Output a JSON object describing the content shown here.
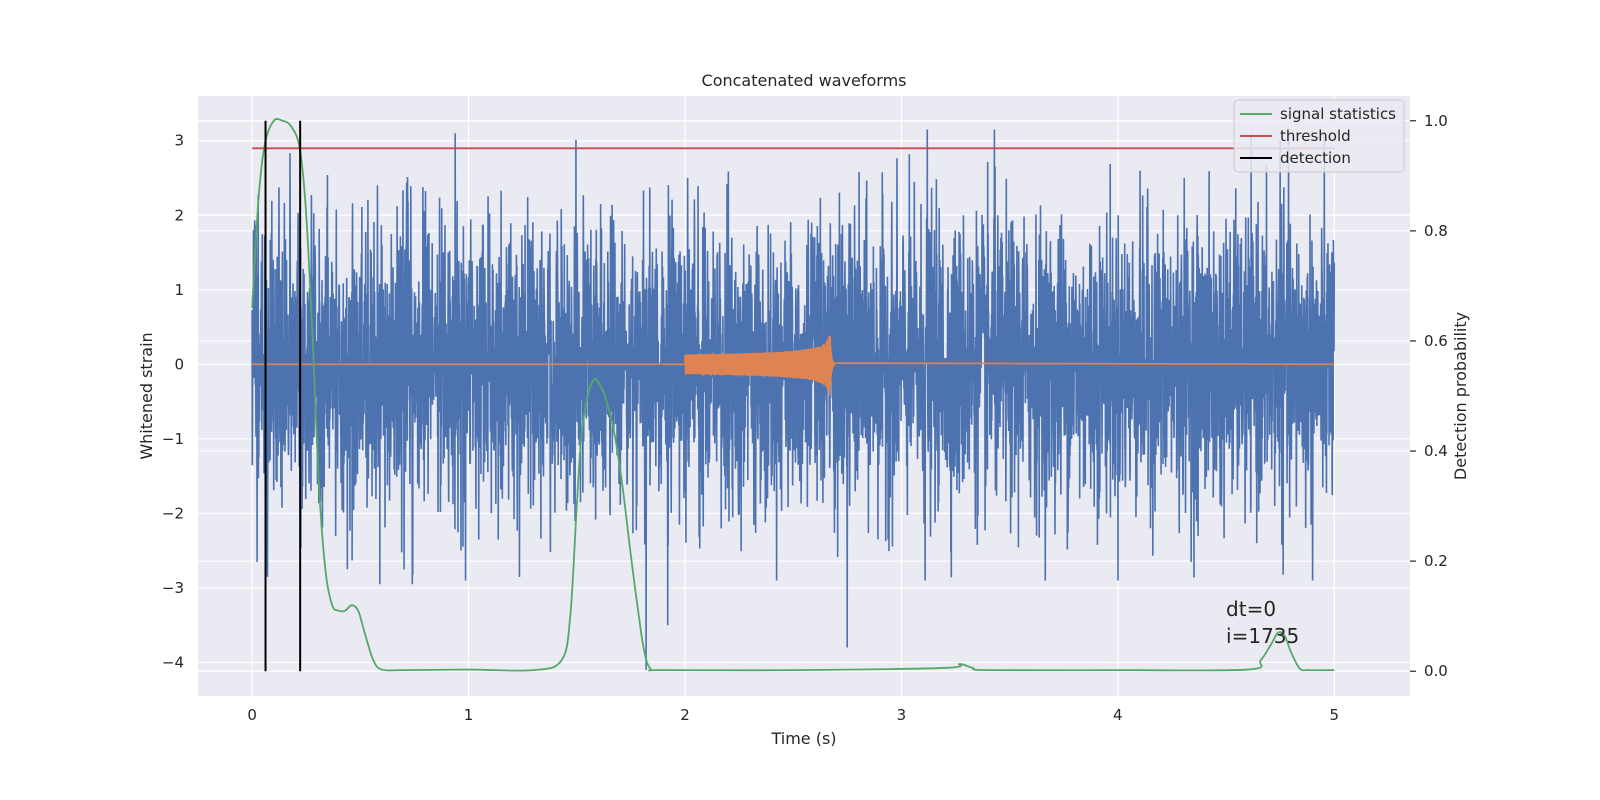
{
  "chart_data": {
    "type": "line",
    "title": "Concatenated waveforms",
    "xlabel": "Time (s)",
    "ylabel": "Whitened strain",
    "y2label": "Detection probability",
    "xlim": [
      -0.25,
      5.35
    ],
    "ylim": [
      -4.45,
      3.6
    ],
    "y2lim": [
      -0.045,
      1.045
    ],
    "xticks": [
      0,
      1,
      2,
      3,
      4,
      5
    ],
    "yticks": [
      -4,
      -3,
      -2,
      -1,
      0,
      1,
      2,
      3
    ],
    "y2ticks": [
      0.0,
      0.2,
      0.4,
      0.6,
      0.8,
      1.0
    ],
    "xtick_labels": [
      "0",
      "1",
      "2",
      "3",
      "4",
      "5"
    ],
    "ytick_labels": [
      "−4",
      "−3",
      "−2",
      "−1",
      "0",
      "1",
      "2",
      "3"
    ],
    "y2tick_labels": [
      "0.0",
      "0.2",
      "0.4",
      "0.6",
      "0.8",
      "1.0"
    ],
    "grid": true,
    "legend_position": "top-right",
    "colors": {
      "strain": "#4c72b0",
      "template": "#dd8452",
      "signal_statistics": "#55a868",
      "threshold": "#c44e52",
      "detection": "#000000",
      "background": "#eaeaf2",
      "grid": "#ffffff"
    },
    "series": [
      {
        "name": "signal statistics",
        "axis": "right",
        "x": [
          0,
          0.03,
          0.06,
          0.1,
          0.14,
          0.18,
          0.22,
          0.25,
          0.28,
          0.31,
          0.34,
          0.37,
          0.4,
          0.43,
          0.46,
          0.49,
          0.52,
          0.56,
          0.6,
          0.7,
          1.0,
          1.3,
          1.43,
          1.47,
          1.5,
          1.52,
          1.55,
          1.58,
          1.6,
          1.63,
          1.67,
          1.71,
          1.75,
          1.78,
          1.81,
          1.84,
          1.9,
          2.5,
          3.2,
          3.27,
          3.33,
          3.4,
          4.0,
          4.6,
          4.66,
          4.71,
          4.74,
          4.77,
          4.8,
          4.84,
          4.88,
          5.0
        ],
        "y": [
          0.66,
          0.86,
          0.96,
          1.0,
          1.0,
          0.99,
          0.95,
          0.83,
          0.6,
          0.33,
          0.18,
          0.12,
          0.11,
          0.11,
          0.12,
          0.11,
          0.07,
          0.02,
          0.003,
          0.002,
          0.003,
          0.002,
          0.02,
          0.1,
          0.3,
          0.42,
          0.5,
          0.53,
          0.525,
          0.5,
          0.44,
          0.34,
          0.21,
          0.12,
          0.04,
          0.005,
          0.002,
          0.002,
          0.006,
          0.013,
          0.006,
          0.002,
          0.002,
          0.003,
          0.02,
          0.05,
          0.07,
          0.065,
          0.035,
          0.005,
          0.002,
          0.002
        ]
      },
      {
        "name": "threshold",
        "axis": "right",
        "x": [
          0,
          5.0
        ],
        "y": [
          0.95,
          0.95
        ]
      },
      {
        "name": "detection",
        "axis": "right",
        "type": "vlines",
        "x": [
          0.062,
          0.222
        ],
        "y": [
          0.0,
          1.0
        ]
      }
    ],
    "strain_noise": {
      "x_range": [
        0,
        5.0
      ],
      "amplitude_range": [
        -2.9,
        3.1
      ],
      "spikes": [
        {
          "x": 1.82,
          "y": -4.1
        },
        {
          "x": 1.92,
          "y": -3.5
        },
        {
          "x": 2.75,
          "y": -3.8
        },
        {
          "x": 3.12,
          "y": 3.15
        },
        {
          "x": 3.43,
          "y": 3.15
        },
        {
          "x": 0.07,
          "y": -2.45
        },
        {
          "x": 0.44,
          "y": -2.75
        },
        {
          "x": 0.59,
          "y": -2.95
        },
        {
          "x": 0.74,
          "y": -2.95
        },
        {
          "x": 3.11,
          "y": -2.9
        },
        {
          "x": 4.75,
          "y": 3.0
        },
        {
          "x": 4.9,
          "y": -2.9
        }
      ]
    },
    "template_waveform": {
      "x_range": [
        2.0,
        2.69
      ],
      "peak_time": 2.67,
      "peak_amplitude": 0.47
    },
    "annotations": [
      "dt=0",
      "i=1735"
    ]
  }
}
